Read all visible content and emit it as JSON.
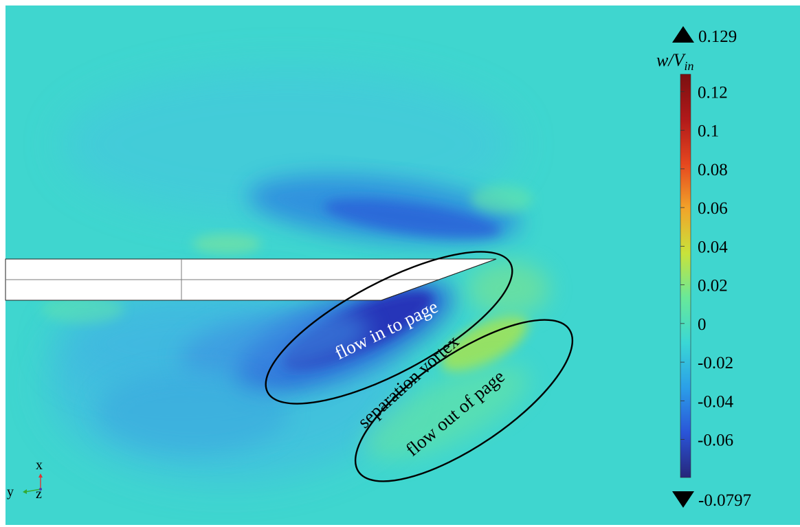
{
  "annotations": {
    "flow_in": "flow in to page",
    "separation": "separation vortex",
    "flow_out": "flow out of page"
  },
  "axes_triad": {
    "x": "x",
    "y": "y",
    "z": "z"
  },
  "colorbar": {
    "title_var": "w/V",
    "title_sub": "in",
    "max_label": "0.129",
    "min_label": "-0.0797",
    "max_value": 0.129,
    "min_value": -0.0797,
    "ticks": [
      {
        "value": 0.12,
        "label": "0.12"
      },
      {
        "value": 0.1,
        "label": "0.1"
      },
      {
        "value": 0.08,
        "label": "0.08"
      },
      {
        "value": 0.06,
        "label": "0.06"
      },
      {
        "value": 0.04,
        "label": "0.04"
      },
      {
        "value": 0.02,
        "label": "0.02"
      },
      {
        "value": 0,
        "label": "0"
      },
      {
        "value": -0.02,
        "label": "-0.02"
      },
      {
        "value": -0.04,
        "label": "-0.04"
      },
      {
        "value": -0.06,
        "label": "-0.06"
      }
    ],
    "colormap": [
      "#26267a",
      "#2a55d8",
      "#2b9fe8",
      "#3ad7d5",
      "#68e89a",
      "#c8e33b",
      "#f1a42a",
      "#e5471f",
      "#b0191a",
      "#7a1010"
    ]
  },
  "colors": {
    "background_field": "#3fd6cf",
    "airfoil_fill": "#ffffff",
    "outline": "#000000",
    "airfoil_line": "#7a7a7a"
  }
}
